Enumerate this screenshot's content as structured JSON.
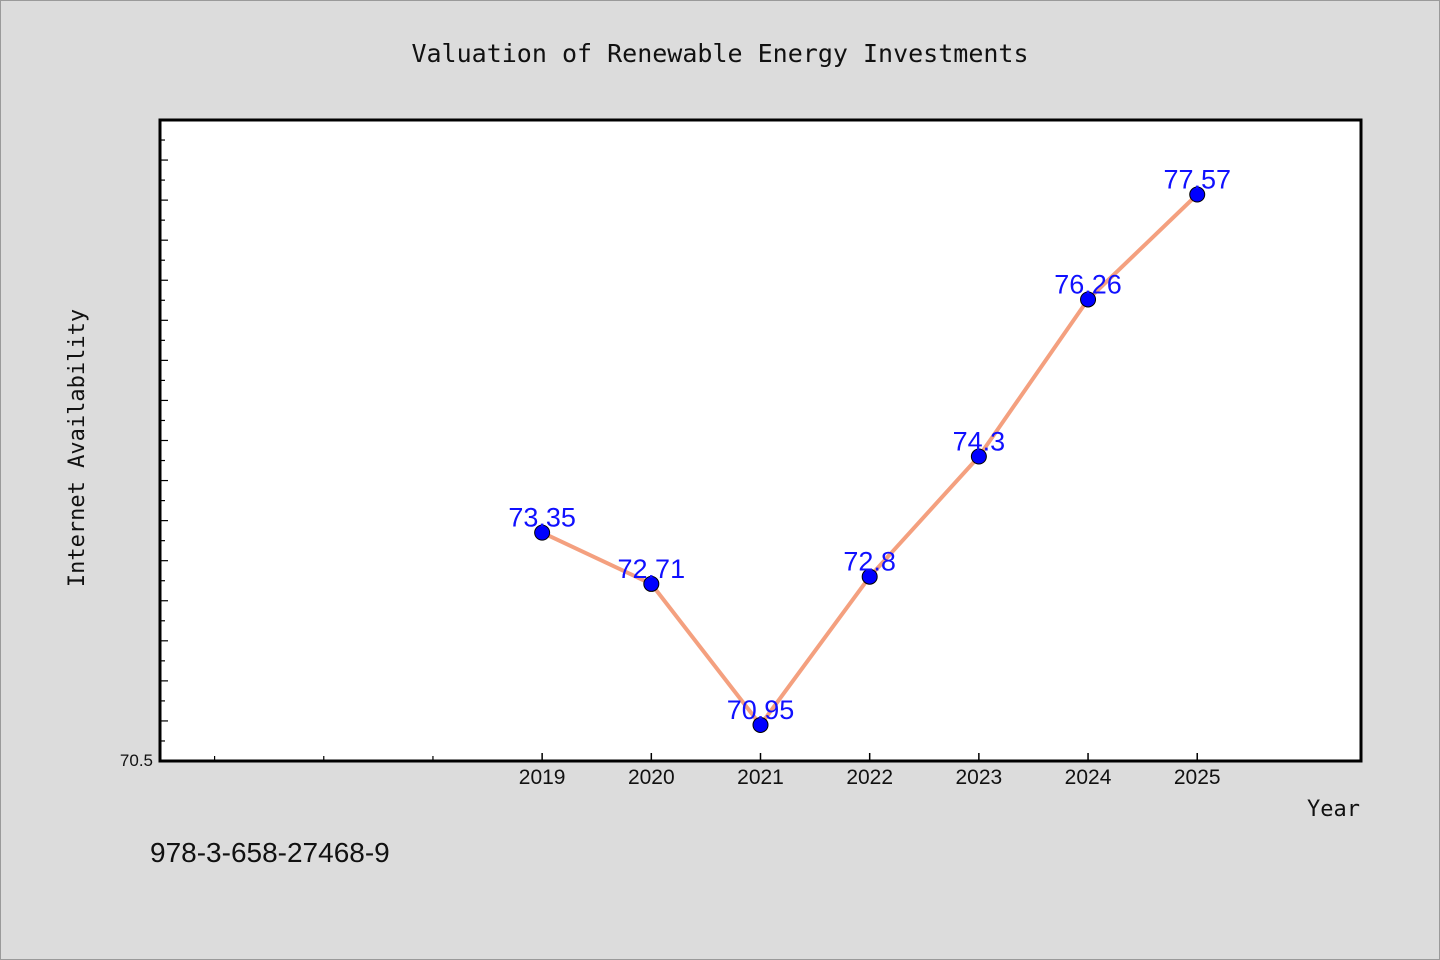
{
  "chart_data": {
    "type": "line",
    "title": "Valuation of Renewable Energy Investments",
    "xlabel": "Year",
    "ylabel": "Internet Availability",
    "categories": [
      "2019",
      "2020",
      "2021",
      "2022",
      "2023",
      "2024",
      "2025"
    ],
    "series": [
      {
        "values": [
          73.35,
          72.71,
          70.95,
          72.8,
          74.3,
          76.26,
          77.57
        ],
        "line_color": "#f4a07f",
        "marker_color": "#0000ff"
      }
    ],
    "data_labels": [
      "73.35",
      "72.71",
      "70.95",
      "72.8",
      "74.3",
      "76.26",
      "77.57"
    ],
    "y_tick_label": "70.5",
    "ylim": [
      70.5,
      78.5
    ],
    "x_axis_extent": [
      -3.5,
      7.5
    ],
    "grid": false,
    "legend": "none"
  },
  "footer": {
    "isbn": "978-3-658-27468-9"
  }
}
